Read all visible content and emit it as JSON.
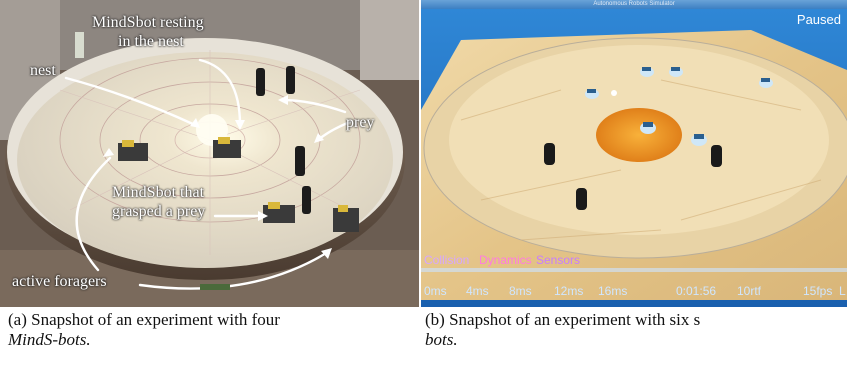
{
  "panel_a": {
    "labels": {
      "title_line1": "MindSbot resting",
      "title_line2": "in the nest",
      "nest": "nest",
      "prey": "prey",
      "grasped_line1": "MindSbot that",
      "grasped_line2": "grasped a prey",
      "active": "active foragers"
    }
  },
  "panel_b": {
    "window_title": "Autonomous Robots Simulator",
    "status": "Paused",
    "hud_words": [
      "Collision",
      "Dynamics",
      "Sensors"
    ],
    "timeline": [
      "0ms",
      "4ms",
      "8ms",
      "12ms",
      "16ms",
      "0:01:56",
      "10rtf",
      "15fps",
      "L"
    ],
    "colors": {
      "collision": "#d6a6ff",
      "dynamics": "#ff7be0",
      "sensors": "#c77dff",
      "timeline": "#cfe6ff"
    }
  },
  "captions": {
    "a_line1": "(a) Snapshot of an experiment with four",
    "a_line2": "MindS-bots.",
    "b_line1": "(b) Snapshot of an experiment with six s",
    "b_line2": "bots."
  }
}
